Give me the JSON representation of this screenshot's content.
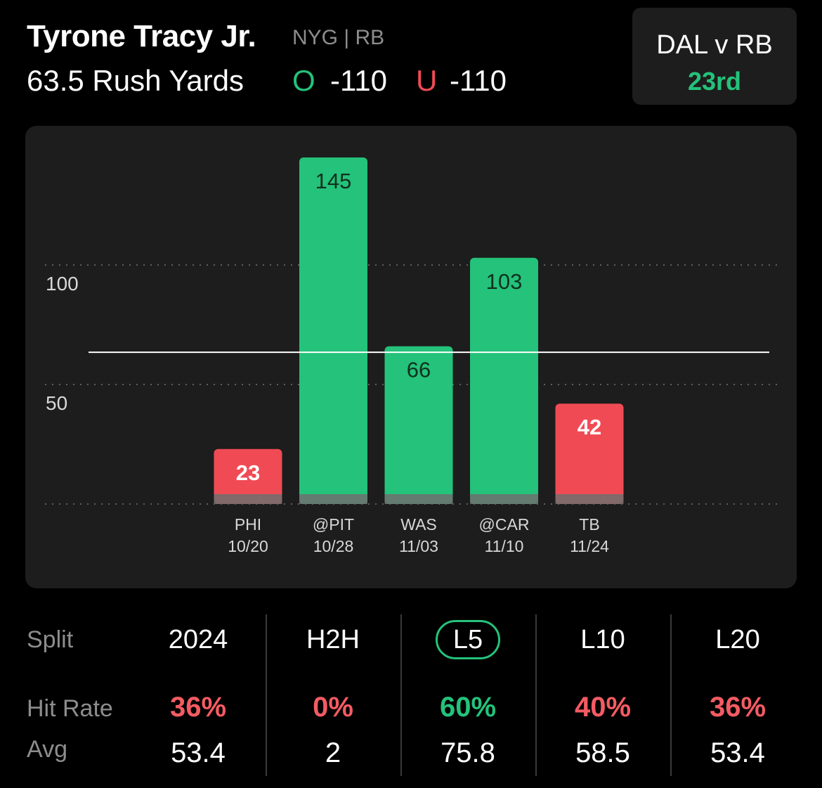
{
  "header": {
    "player_name": "Tyrone Tracy Jr.",
    "team_position": "NYG | RB",
    "prop_line": "63.5 Rush Yards",
    "over_symbol": "O",
    "over_odds": "-110",
    "under_symbol": "U",
    "under_odds": "-110"
  },
  "matchup": {
    "label": "DAL v RB",
    "rank": "23rd"
  },
  "colors": {
    "green": "#24c27a",
    "red": "#f04b55",
    "panel": "#1d1d1d"
  },
  "chart_data": {
    "type": "bar",
    "categories": [
      "PHI",
      "@PIT",
      "WAS",
      "@CAR",
      "TB"
    ],
    "dates": [
      "10/20",
      "10/28",
      "11/03",
      "11/10",
      "11/24"
    ],
    "values": [
      23,
      145,
      66,
      103,
      42
    ],
    "data_labels": [
      "23",
      "145",
      "66",
      "103",
      "42"
    ],
    "bar_colors": [
      "#f04b55",
      "#24c27a",
      "#24c27a",
      "#24c27a",
      "#f04b55"
    ],
    "line_value": 63.5,
    "y_ticks": [
      50,
      100
    ],
    "y_tick_labels": [
      "50",
      "100"
    ],
    "ylim": [
      0,
      150
    ],
    "grid": true
  },
  "splits": {
    "split_label": "Split",
    "hit_rate_label": "Hit Rate",
    "avg_label": "Avg",
    "columns": [
      {
        "name": "2024",
        "hit_rate": "36%",
        "avg": "53.4"
      },
      {
        "name": "H2H",
        "hit_rate": "0%",
        "avg": "2"
      },
      {
        "name": "L5",
        "hit_rate": "60%",
        "avg": "75.8"
      },
      {
        "name": "L10",
        "hit_rate": "40%",
        "avg": "58.5"
      },
      {
        "name": "L20",
        "hit_rate": "36%",
        "avg": "53.4"
      }
    ]
  }
}
